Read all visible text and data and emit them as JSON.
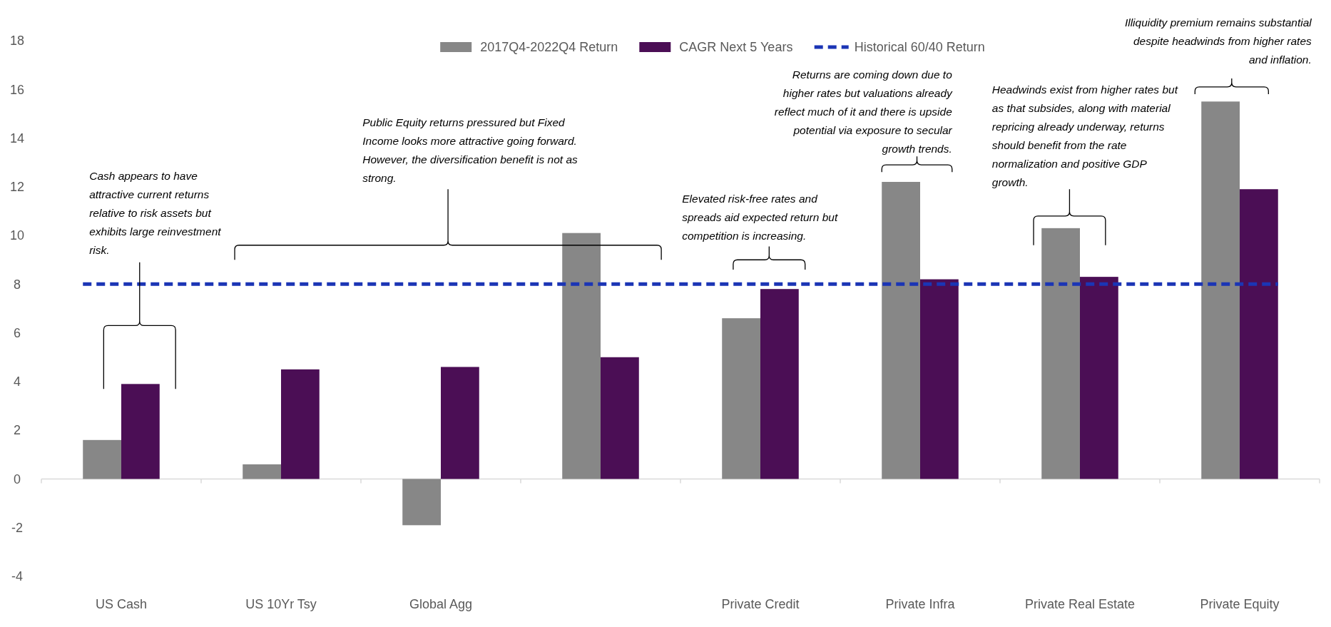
{
  "chart_data": {
    "type": "bar",
    "categories": [
      "US Cash",
      "US 10Yr Tsy",
      "Global Agg",
      null,
      "Private Credit",
      "Private Infra",
      "Private Real Estate",
      "Private Equity"
    ],
    "series": [
      {
        "name": "2017Q4-2022Q4 Return",
        "color": "#878787",
        "values": [
          1.6,
          0.6,
          -1.9,
          10.1,
          6.6,
          12.2,
          10.3,
          15.5
        ]
      },
      {
        "name": "CAGR Next 5 Years",
        "color": "#4b0e55",
        "values": [
          3.9,
          4.5,
          4.6,
          5.0,
          7.8,
          8.2,
          8.3,
          11.9
        ]
      }
    ],
    "ref_lines": [
      {
        "axis": "y",
        "value": 8,
        "label": "Historical 60/40 Return",
        "color": "#1b35b5",
        "line_style": "dashed"
      }
    ],
    "ylim": [
      -4,
      18
    ],
    "yticks": [
      -4,
      -2,
      0,
      2,
      4,
      6,
      8,
      10,
      12,
      14,
      16,
      18
    ],
    "grid": false,
    "legend": "top",
    "annotations": [
      "Cash appears to have attractive current returns relative to risk assets but exhibits large reinvestment risk.",
      "Public Equity returns pressured but Fixed Income looks more attractive going forward. However, the diversification benefit is not as strong.",
      "Elevated risk-free rates and spreads aid expected return but competition is increasing.",
      "Returns are coming down due to higher rates but valuations already reflect much of it and there is upside potential via exposure to secular growth trends.",
      "Headwinds exist from higher rates but as that subsides, along with material repricing already underway, returns should benefit from the rate normalization and positive GDP growth.",
      "Illiquidity premium remains substantial despite headwinds from higher rates and inflation."
    ]
  }
}
